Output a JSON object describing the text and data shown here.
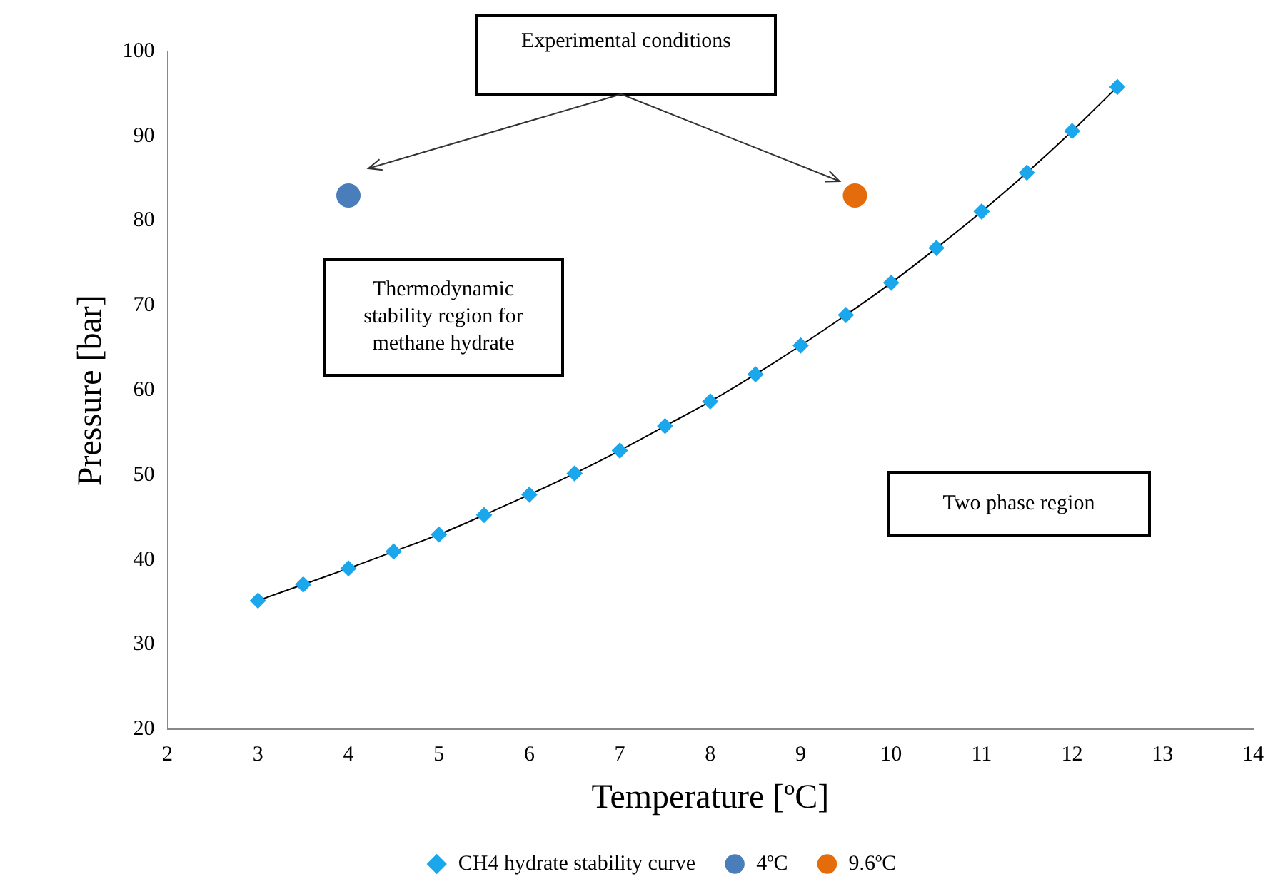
{
  "chart_data": {
    "type": "line",
    "xlabel": "Temperature [ºC]",
    "ylabel": "Pressure [bar]",
    "xlim": [
      2,
      14
    ],
    "xticks": [
      2,
      3,
      4,
      5,
      6,
      7,
      8,
      9,
      10,
      11,
      12,
      13,
      14
    ],
    "ylim": [
      20,
      100
    ],
    "yticks": [
      20,
      30,
      40,
      50,
      60,
      70,
      80,
      90,
      100
    ],
    "grid": false,
    "legend": "bottom",
    "series": [
      {
        "name": "CH4 hydrate stability curve",
        "marker": "diamond",
        "color": "#1aa7ec",
        "x": [
          3,
          3.5,
          4,
          4.5,
          5,
          5.5,
          6,
          6.5,
          7,
          7.5,
          8,
          8.5,
          9,
          9.5,
          10,
          10.5,
          11,
          11.5,
          12,
          12.5
        ],
        "values": [
          35.2,
          37.1,
          39.0,
          41.0,
          43.0,
          45.3,
          47.7,
          50.2,
          52.9,
          55.8,
          58.7,
          61.9,
          65.3,
          68.9,
          72.7,
          76.8,
          81.1,
          85.7,
          90.6,
          95.8
        ]
      },
      {
        "name": "4ºC",
        "type": "scatter",
        "marker": "circle",
        "color": "#4a7ebb",
        "x": [
          4
        ],
        "values": [
          83
        ]
      },
      {
        "name": "9.6ºC",
        "type": "scatter",
        "marker": "circle",
        "color": "#e46c0a",
        "x": [
          9.6
        ],
        "values": [
          83
        ]
      }
    ],
    "annotations": [
      "Experimental conditions",
      "Thermodynamic stability region for methane hydrate",
      "Two phase region"
    ]
  }
}
